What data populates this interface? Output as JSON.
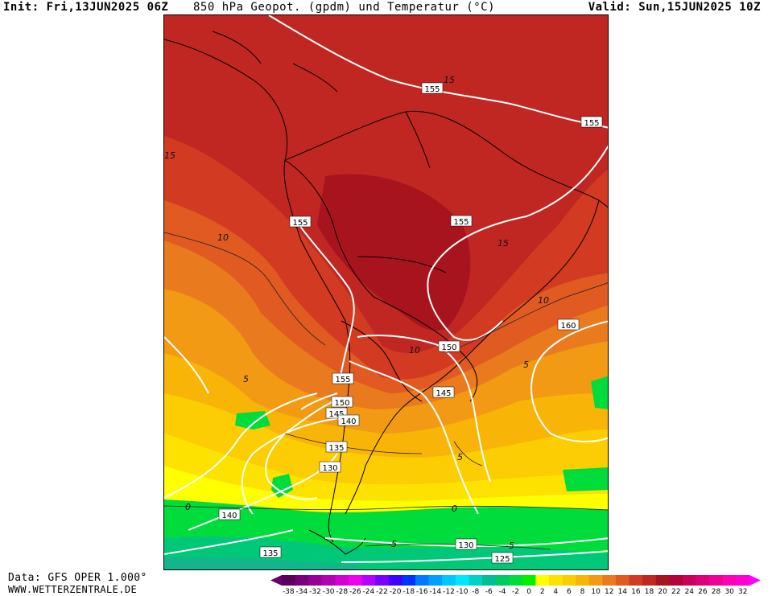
{
  "header": {
    "init": "Init: Fri,13JUN2025 06Z",
    "title": "850 hPa Geopot. (gpdm) und Temperatur (°C)",
    "valid": "Valid: Sun,15JUN2025 10Z"
  },
  "footer": {
    "source": "Data: GFS OPER 1.000°",
    "site": "WWW.WETTERZENTRALE.DE"
  },
  "map": {
    "region": "South America",
    "colors": {
      "t20": "#a8141e",
      "t18": "#c02722",
      "t16": "#d23a22",
      "t14": "#e05a22",
      "t12": "#ea7a1e",
      "t10": "#f29a14",
      "t8": "#f9b408",
      "t6": "#fccd02",
      "t4": "#fde200",
      "t2": "#ffff00",
      "t0": "#00dc3c",
      "tm2": "#00c878",
      "tm4": "#14b48c",
      "coast": "#000000",
      "geopotential": "#ffffff"
    },
    "geopotential_labels": [
      "155",
      "155",
      "155",
      "155",
      "160",
      "150",
      "145",
      "155",
      "150",
      "145",
      "140",
      "135",
      "130",
      "140",
      "135",
      "130",
      "125"
    ],
    "temperature_labels": [
      "15",
      "15",
      "15",
      "10",
      "10",
      "10",
      "5",
      "5",
      "5",
      "0",
      "0",
      "-5",
      "-5"
    ]
  },
  "legend": {
    "arrow_left_color": "#6a006a",
    "arrow_right_color": "#ff00ff",
    "items": [
      {
        "value": "-38",
        "color": "#5a005a"
      },
      {
        "value": "-34",
        "color": "#78007a"
      },
      {
        "value": "-32",
        "color": "#960096"
      },
      {
        "value": "-30",
        "color": "#b400b4"
      },
      {
        "value": "-28",
        "color": "#d200d2"
      },
      {
        "value": "-26",
        "color": "#ee00ee"
      },
      {
        "value": "-24",
        "color": "#b400ff"
      },
      {
        "value": "-22",
        "color": "#7800ff"
      },
      {
        "value": "-20",
        "color": "#3c00ff"
      },
      {
        "value": "-18",
        "color": "#0032ff"
      },
      {
        "value": "-16",
        "color": "#0078ff"
      },
      {
        "value": "-14",
        "color": "#00a0ff"
      },
      {
        "value": "-12",
        "color": "#00c8ff"
      },
      {
        "value": "-10",
        "color": "#00e6ff"
      },
      {
        "value": "-8",
        "color": "#00d2c8"
      },
      {
        "value": "-6",
        "color": "#00be96"
      },
      {
        "value": "-4",
        "color": "#00c864"
      },
      {
        "value": "-2",
        "color": "#00dc3c"
      },
      {
        "value": "0",
        "color": "#00f000"
      },
      {
        "value": "2",
        "color": "#ffff00"
      },
      {
        "value": "4",
        "color": "#fde200"
      },
      {
        "value": "6",
        "color": "#fccd02"
      },
      {
        "value": "8",
        "color": "#f9b408"
      },
      {
        "value": "10",
        "color": "#f29a14"
      },
      {
        "value": "12",
        "color": "#ea7a1e"
      },
      {
        "value": "14",
        "color": "#e05a22"
      },
      {
        "value": "16",
        "color": "#d23a22"
      },
      {
        "value": "18",
        "color": "#c02722"
      },
      {
        "value": "20",
        "color": "#a8141e"
      },
      {
        "value": "22",
        "color": "#b4003c"
      },
      {
        "value": "24",
        "color": "#c8005a"
      },
      {
        "value": "26",
        "color": "#dc0078"
      },
      {
        "value": "28",
        "color": "#ee0096"
      },
      {
        "value": "30",
        "color": "#ff00b4"
      },
      {
        "value": "32",
        "color": "#ff00d2"
      }
    ]
  }
}
